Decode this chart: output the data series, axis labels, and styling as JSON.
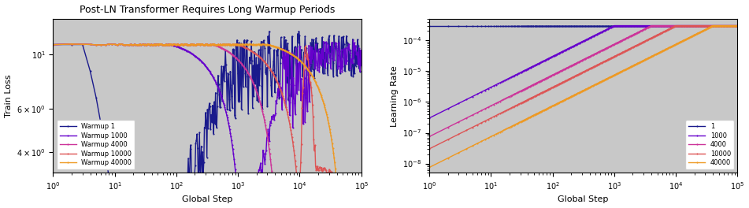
{
  "title": "Post-LN Transformer Requires Long Warmup Periods",
  "colors": {
    "1": "#1a1a8c",
    "1000": "#6600cc",
    "4000": "#cc3399",
    "10000": "#dd5555",
    "40000": "#ee9922"
  },
  "warmup_steps": [
    1,
    1000,
    4000,
    10000,
    40000
  ],
  "max_lr": 0.0003,
  "total_steps": 100000,
  "bg_color": "#c8c8c8",
  "marker": ".",
  "markersize": 3,
  "linewidth": 1.0
}
